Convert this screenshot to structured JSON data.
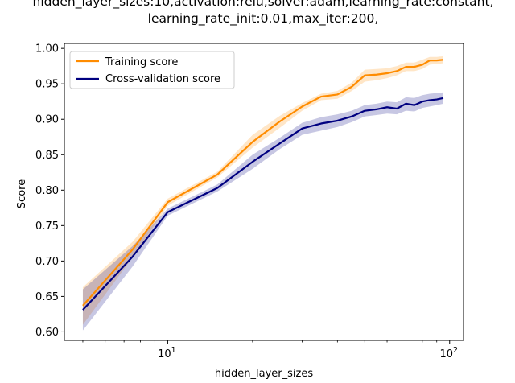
{
  "chart_data": {
    "type": "line",
    "title_lines": [
      "hidden_layer_sizes:10,activation:relu,solver:adam,learning_rate:constant,",
      "learning_rate_init:0.01,max_iter:200,"
    ],
    "xlabel": "hidden_layer_sizes",
    "ylabel": "Score",
    "xscale": "log",
    "xlim": [
      4.3,
      112
    ],
    "ylim": [
      0.588,
      1.007
    ],
    "yticks": [
      0.6,
      0.65,
      0.7,
      0.75,
      0.8,
      0.85,
      0.9,
      0.95,
      1.0
    ],
    "ytick_labels": [
      "0.60",
      "0.65",
      "0.70",
      "0.75",
      "0.80",
      "0.85",
      "0.90",
      "0.95",
      "1.00"
    ],
    "xticks": [
      {
        "value": 10,
        "base": "10",
        "exp": "1"
      },
      {
        "value": 100,
        "base": "10",
        "exp": "2"
      }
    ],
    "x_minor_ticks": [
      5,
      6,
      7,
      8,
      9,
      20,
      30,
      40,
      50,
      60,
      70,
      80,
      90
    ],
    "x": [
      5,
      7.5,
      10,
      15,
      20,
      25,
      30,
      35,
      40,
      45,
      50,
      55,
      60,
      65,
      70,
      75,
      80,
      85,
      90,
      95
    ],
    "series": [
      {
        "name": "Training score",
        "color": "#ff8c00",
        "mean": [
          0.637,
          0.716,
          0.783,
          0.822,
          0.868,
          0.897,
          0.918,
          0.932,
          0.935,
          0.946,
          0.962,
          0.963,
          0.965,
          0.968,
          0.974,
          0.974,
          0.977,
          0.983,
          0.983,
          0.984
        ],
        "band_low": [
          0.61,
          0.705,
          0.778,
          0.818,
          0.86,
          0.888,
          0.912,
          0.927,
          0.929,
          0.94,
          0.953,
          0.955,
          0.958,
          0.962,
          0.968,
          0.968,
          0.971,
          0.977,
          0.978,
          0.979
        ],
        "band_high": [
          0.663,
          0.727,
          0.788,
          0.826,
          0.878,
          0.905,
          0.923,
          0.936,
          0.94,
          0.952,
          0.97,
          0.971,
          0.972,
          0.975,
          0.98,
          0.98,
          0.984,
          0.988,
          0.988,
          0.989
        ]
      },
      {
        "name": "Cross-validation score",
        "color": "#000080",
        "mean": [
          0.631,
          0.706,
          0.769,
          0.803,
          0.84,
          0.866,
          0.887,
          0.894,
          0.898,
          0.904,
          0.912,
          0.914,
          0.917,
          0.915,
          0.922,
          0.92,
          0.925,
          0.927,
          0.928,
          0.93
        ],
        "band_low": [
          0.602,
          0.692,
          0.764,
          0.798,
          0.83,
          0.858,
          0.878,
          0.884,
          0.889,
          0.896,
          0.904,
          0.906,
          0.908,
          0.907,
          0.912,
          0.911,
          0.916,
          0.918,
          0.92,
          0.922
        ],
        "band_high": [
          0.66,
          0.721,
          0.774,
          0.808,
          0.85,
          0.874,
          0.895,
          0.903,
          0.907,
          0.912,
          0.92,
          0.922,
          0.925,
          0.924,
          0.931,
          0.93,
          0.934,
          0.936,
          0.937,
          0.938
        ]
      }
    ],
    "legend": {
      "placement": "upper-left"
    },
    "grid": false
  }
}
